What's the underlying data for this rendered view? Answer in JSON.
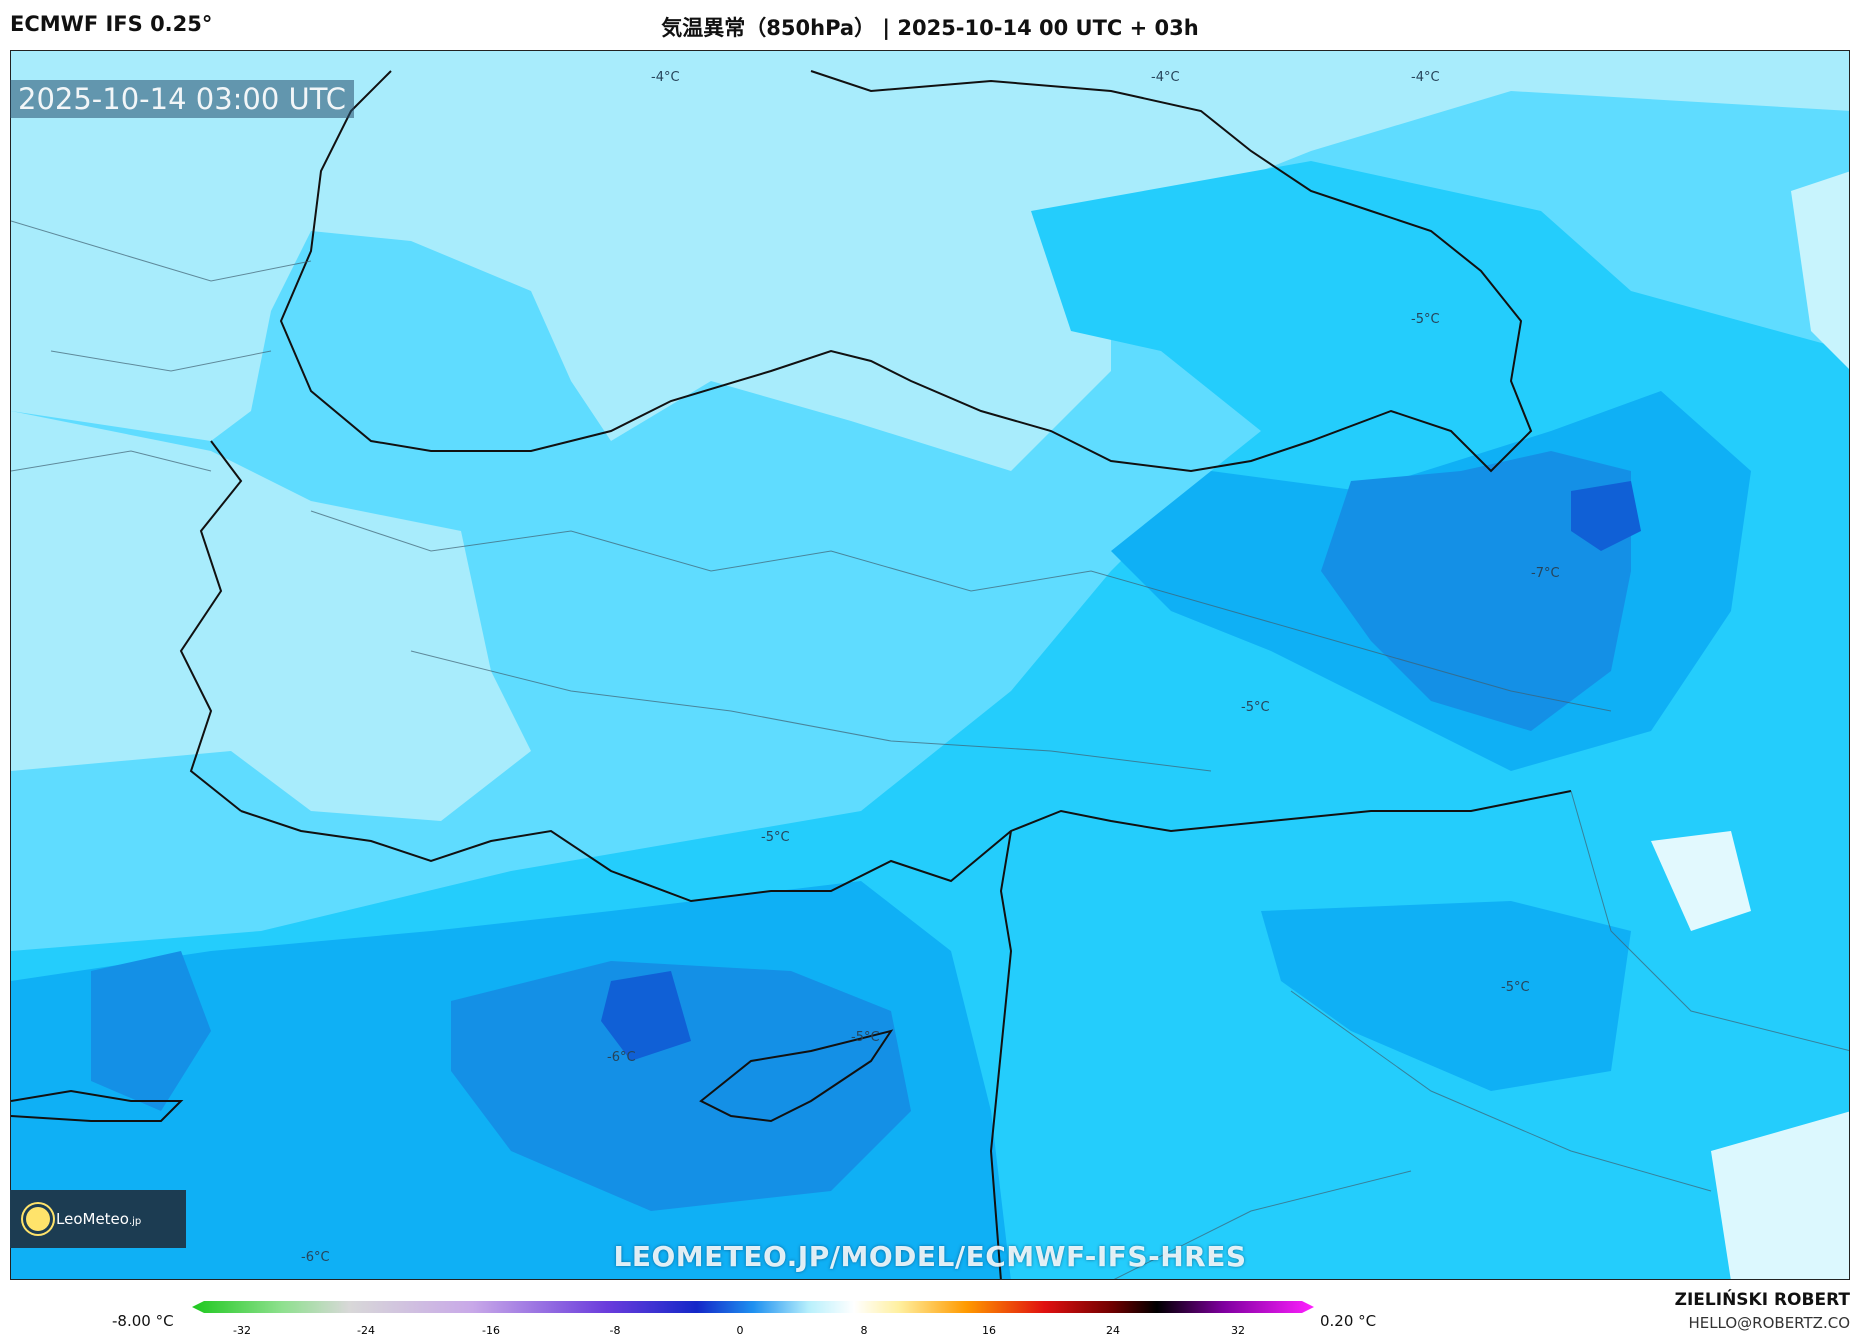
{
  "header": {
    "model": "ECMWF IFS 0.25°",
    "title": "気温異常（850hPa） | 2025-10-14 00 UTC + 03h"
  },
  "map": {
    "timestamp": "2025-10-14 03:00 UTC",
    "watermark": "LEOMETEO.JP/MODEL/ECMWF-IFS-HRES",
    "logo": {
      "name": "LeoMeteo",
      "suffix": ".jp"
    },
    "contour_labels": [
      "-4°C",
      "-4°C",
      "-4°C",
      "-5°C",
      "-7°C",
      "-5°C",
      "-5°C",
      "-5°C",
      "-5°C",
      "-6°C",
      "-6°C"
    ],
    "colors": {
      "pale": "#a8ecfc",
      "light": "#5fdcff",
      "mid": "#24cdfc",
      "strong": "#0fb0f5",
      "deep": "#1490e6",
      "darkest": "#1060d6"
    }
  },
  "legend": {
    "min_label": "-8.00 °C",
    "max_label": "0.20 °C",
    "ticks": [
      "-32",
      "-24",
      "-16",
      "-8",
      "0",
      "8",
      "16",
      "24",
      "32"
    ]
  },
  "credit": {
    "name": "ZIELIŃSKI ROBERT",
    "email": "HELLO@ROBERTZ.CO"
  }
}
